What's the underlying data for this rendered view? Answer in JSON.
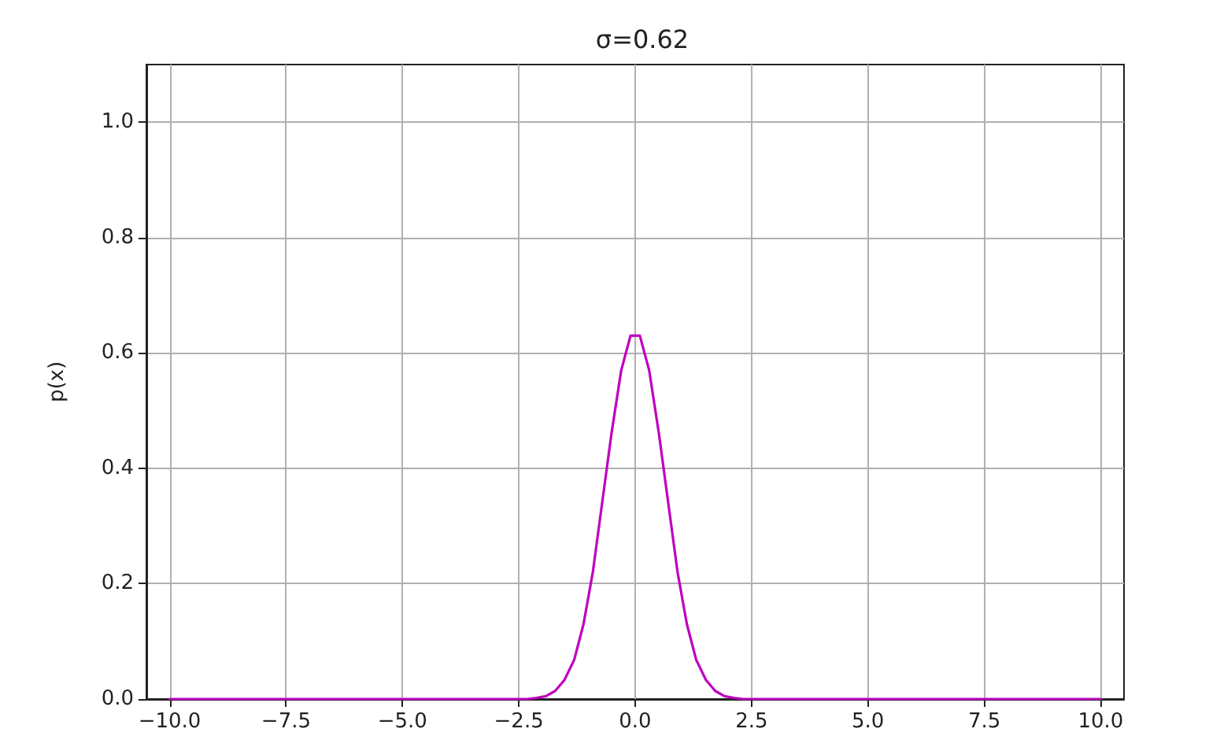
{
  "chart_data": {
    "type": "line",
    "title": "σ=0.62",
    "ylabel": "p(x)",
    "x": [
      -10,
      -2.73,
      -2.53,
      -2.32,
      -2.12,
      -1.92,
      -1.72,
      -1.52,
      -1.31,
      -1.11,
      -0.91,
      -0.71,
      -0.51,
      -0.3,
      -0.1,
      0.1,
      0.3,
      0.51,
      0.71,
      0.91,
      1.11,
      1.31,
      1.52,
      1.72,
      1.92,
      2.12,
      2.32,
      2.53,
      2.73,
      10
    ],
    "values": [
      0,
      0,
      0,
      0,
      0.002,
      0.005,
      0.014,
      0.033,
      0.068,
      0.13,
      0.22,
      0.34,
      0.46,
      0.57,
      0.63,
      0.63,
      0.57,
      0.46,
      0.34,
      0.22,
      0.13,
      0.068,
      0.033,
      0.014,
      0.005,
      0.002,
      0,
      0,
      0,
      0
    ],
    "color": "#bf00bf",
    "xlim": [
      -10.5,
      10.5
    ],
    "xticks": [
      {
        "value": -10,
        "label": "−10.0"
      },
      {
        "value": -7.5,
        "label": "−7.5"
      },
      {
        "value": -5,
        "label": "−5.0"
      },
      {
        "value": -2.5,
        "label": "−2.5"
      },
      {
        "value": 0,
        "label": "0.0"
      },
      {
        "value": 2.5,
        "label": "2.5"
      },
      {
        "value": 5,
        "label": "5.0"
      },
      {
        "value": 7.5,
        "label": "7.5"
      },
      {
        "value": 10,
        "label": "10.0"
      }
    ],
    "ylim": [
      0,
      1.1
    ],
    "yticks": [
      {
        "value": 0,
        "label": "0.0"
      },
      {
        "value": 0.2,
        "label": "0.2"
      },
      {
        "value": 0.4,
        "label": "0.4"
      },
      {
        "value": 0.6,
        "label": "0.6"
      },
      {
        "value": 0.8,
        "label": "0.8"
      },
      {
        "value": 1,
        "label": "1.0"
      }
    ],
    "grid": true
  }
}
